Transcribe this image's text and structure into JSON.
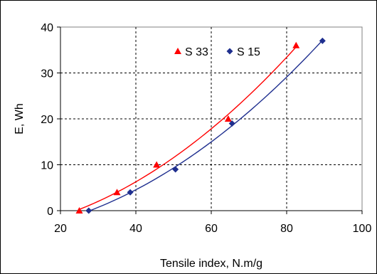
{
  "chart_data": {
    "type": "scatter",
    "title": "",
    "xlabel": "Tensile index, N.m/g",
    "ylabel": "E, Wh",
    "xlim": [
      20,
      100
    ],
    "ylim": [
      0,
      40
    ],
    "xticks": [
      20,
      40,
      60,
      80,
      100
    ],
    "yticks": [
      0,
      10,
      20,
      30,
      40
    ],
    "grid": true,
    "legend_position": "top-center",
    "series": [
      {
        "name": "S 33",
        "marker": "triangle",
        "color": "#ff0000",
        "x": [
          25,
          35,
          45.5,
          64.5,
          82.5
        ],
        "y": [
          0,
          4,
          10,
          20,
          36
        ],
        "trendline": "polynomial"
      },
      {
        "name": "S 15",
        "marker": "diamond",
        "color": "#1f2f8f",
        "x": [
          27.5,
          38.5,
          50.5,
          65.5,
          89.5
        ],
        "y": [
          0,
          4,
          9,
          19,
          37
        ],
        "trendline": "polynomial"
      }
    ]
  }
}
